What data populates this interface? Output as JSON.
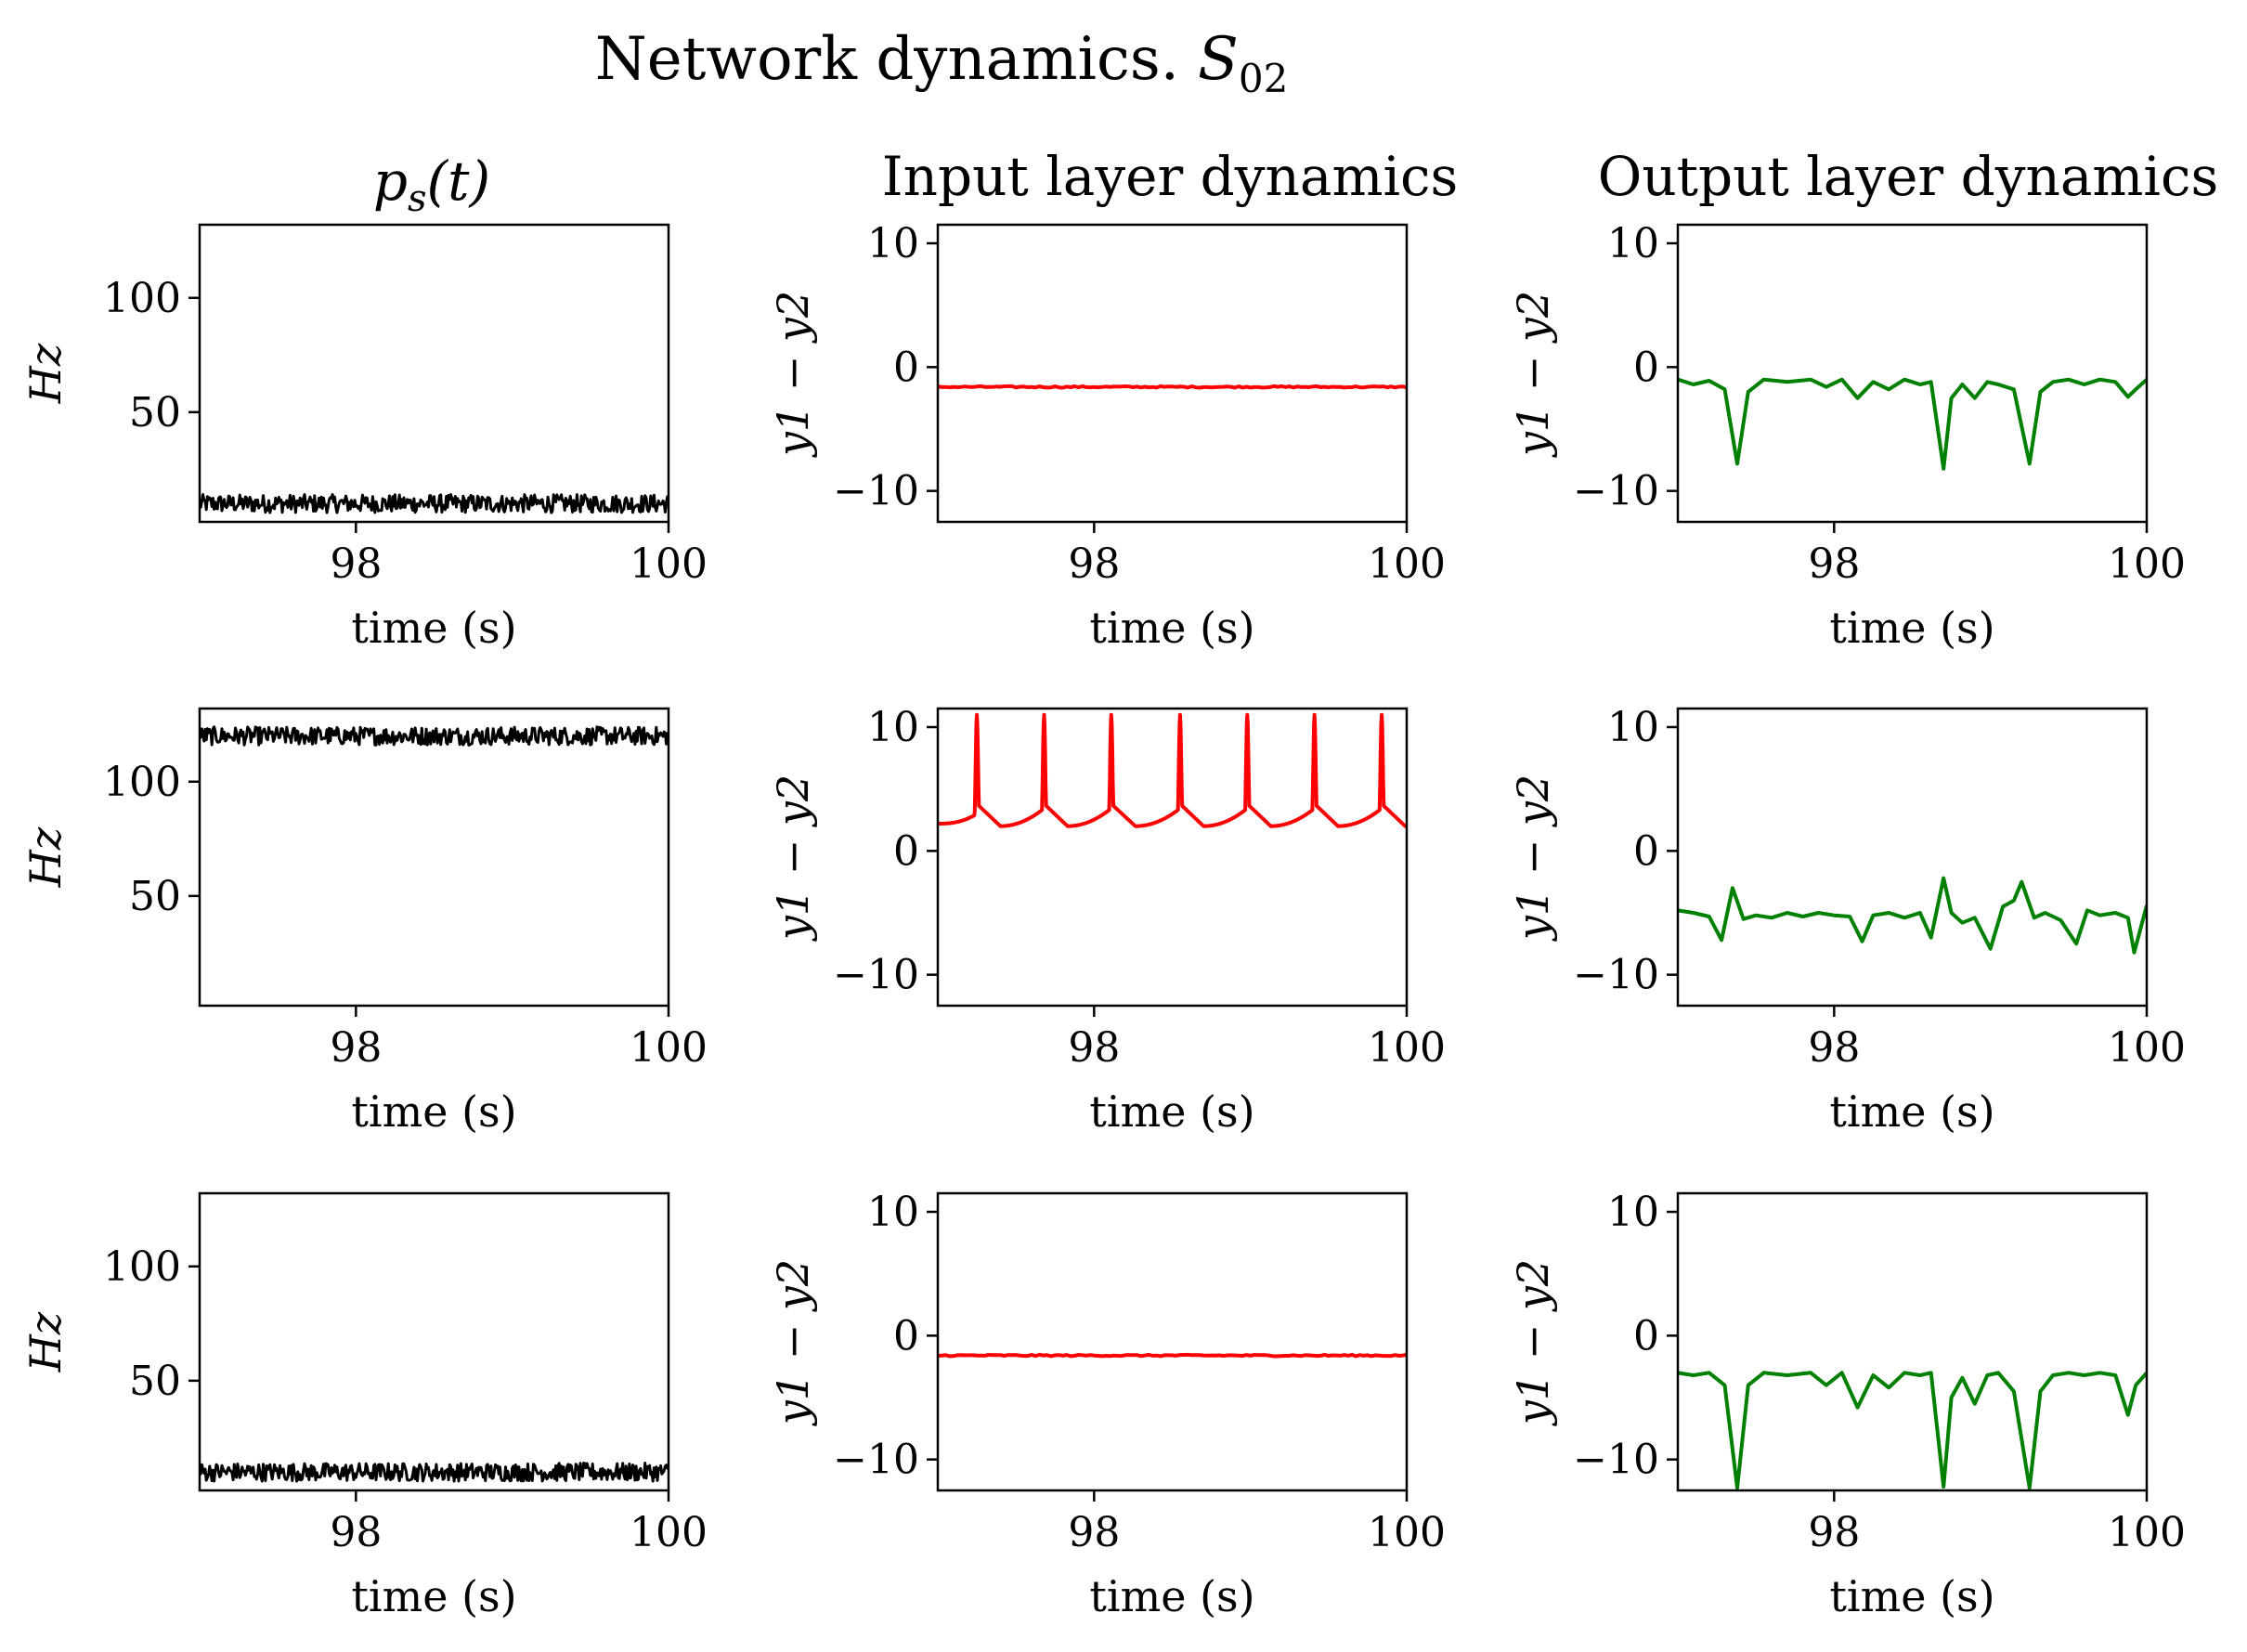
{
  "figure": {
    "suptitle": "Network dynamics.",
    "suptitle_math": {
      "base": "S",
      "sub": "02"
    },
    "column_titles": [
      {
        "base": "p",
        "sub": "s",
        "tail": "(t)"
      },
      {
        "text": "Input layer dynamics"
      },
      {
        "text": "Output layer dynamics"
      }
    ]
  },
  "chart_data": [
    {
      "type": "line",
      "row": 1,
      "col": 1,
      "xlabel": "time (s)",
      "ylabel": "Hz",
      "xlim": [
        97,
        100
      ],
      "ylim": [
        2,
        132
      ],
      "xticks": [
        98,
        100
      ],
      "yticks": [
        50,
        100
      ],
      "grid": false,
      "series": [
        {
          "color": "#000000",
          "kind": "noise",
          "mean": 10,
          "amplitude": 4,
          "t_start": 97,
          "t_end": 100
        }
      ]
    },
    {
      "type": "line",
      "row": 1,
      "col": 2,
      "xlabel": "time (s)",
      "ylabel": "y1 − y2",
      "xlim": [
        97,
        100
      ],
      "ylim": [
        -12.5,
        11.5
      ],
      "xticks": [
        98,
        100
      ],
      "yticks": [
        -10,
        0,
        10
      ],
      "grid": false,
      "series": [
        {
          "color": "#ff0000",
          "kind": "constant",
          "value": -1.6,
          "t_start": 97,
          "t_end": 100
        }
      ]
    },
    {
      "type": "line",
      "row": 1,
      "col": 3,
      "xlabel": "time (s)",
      "ylabel": "y1 − y2",
      "xlim": [
        97,
        100
      ],
      "ylim": [
        -12.5,
        11.5
      ],
      "xticks": [
        98,
        100
      ],
      "yticks": [
        -10,
        0,
        10
      ],
      "grid": false,
      "series": [
        {
          "color": "#008000",
          "kind": "points",
          "x": [
            97.0,
            97.1,
            97.2,
            97.3,
            97.38,
            97.45,
            97.55,
            97.7,
            97.85,
            97.95,
            98.05,
            98.15,
            98.25,
            98.35,
            98.45,
            98.55,
            98.62,
            98.7,
            98.75,
            98.82,
            98.9,
            98.98,
            99.05,
            99.15,
            99.25,
            99.32,
            99.4,
            99.5,
            99.6,
            99.7,
            99.8,
            99.88,
            99.93,
            100.0
          ],
          "y": [
            -1.0,
            -1.4,
            -1.1,
            -1.8,
            -7.8,
            -2.0,
            -1.0,
            -1.2,
            -1.0,
            -1.6,
            -1.0,
            -2.5,
            -1.2,
            -1.8,
            -1.0,
            -1.4,
            -1.2,
            -8.2,
            -2.5,
            -1.4,
            -2.5,
            -1.2,
            -1.4,
            -1.8,
            -7.8,
            -2.0,
            -1.2,
            -1.0,
            -1.4,
            -1.0,
            -1.2,
            -2.4,
            -1.8,
            -1.0
          ]
        }
      ]
    },
    {
      "type": "line",
      "row": 2,
      "col": 1,
      "xlabel": "time (s)",
      "ylabel": "Hz",
      "xlim": [
        97,
        100
      ],
      "ylim": [
        2,
        132
      ],
      "xticks": [
        98,
        100
      ],
      "yticks": [
        50,
        100
      ],
      "grid": false,
      "series": [
        {
          "color": "#000000",
          "kind": "noise",
          "mean": 120,
          "amplitude": 4,
          "t_start": 97,
          "t_end": 100
        }
      ]
    },
    {
      "type": "line",
      "row": 2,
      "col": 2,
      "xlabel": "time (s)",
      "ylabel": "y1 − y2",
      "xlim": [
        97,
        100
      ],
      "ylim": [
        -12.5,
        11.5
      ],
      "xticks": [
        98,
        100
      ],
      "yticks": [
        -10,
        0,
        10
      ],
      "grid": false,
      "series": [
        {
          "color": "#ff0000",
          "kind": "spikes",
          "base_start": 2.2,
          "base_trough": 2.0,
          "spike_peak": 11.0,
          "post_spike": 3.8,
          "spike_times": [
            97.25,
            97.68,
            98.11,
            98.55,
            98.98,
            99.41,
            99.84
          ],
          "t_start": 97,
          "t_end": 100
        }
      ]
    },
    {
      "type": "line",
      "row": 2,
      "col": 3,
      "xlabel": "time (s)",
      "ylabel": "y1 − y2",
      "xlim": [
        97,
        100
      ],
      "ylim": [
        -12.5,
        11.5
      ],
      "xticks": [
        98,
        100
      ],
      "yticks": [
        -10,
        0,
        10
      ],
      "grid": false,
      "series": [
        {
          "color": "#008000",
          "kind": "points",
          "x": [
            97.0,
            97.1,
            97.2,
            97.28,
            97.35,
            97.42,
            97.5,
            97.6,
            97.7,
            97.8,
            97.9,
            98.0,
            98.1,
            98.18,
            98.25,
            98.35,
            98.45,
            98.55,
            98.62,
            98.7,
            98.75,
            98.82,
            98.9,
            99.0,
            99.08,
            99.15,
            99.2,
            99.28,
            99.35,
            99.45,
            99.55,
            99.62,
            99.7,
            99.8,
            99.88,
            99.92,
            100.0
          ],
          "y": [
            -4.8,
            -5.0,
            -5.3,
            -7.2,
            -3.0,
            -5.5,
            -5.2,
            -5.4,
            -5.0,
            -5.3,
            -5.0,
            -5.2,
            -5.3,
            -7.3,
            -5.2,
            -5.0,
            -5.4,
            -5.0,
            -7.0,
            -2.2,
            -5.0,
            -5.8,
            -5.4,
            -7.9,
            -4.5,
            -4.0,
            -2.5,
            -5.4,
            -5.0,
            -5.6,
            -7.5,
            -4.8,
            -5.2,
            -5.0,
            -5.4,
            -8.2,
            -4.4
          ]
        }
      ]
    },
    {
      "type": "line",
      "row": 3,
      "col": 1,
      "xlabel": "time (s)",
      "ylabel": "Hz",
      "xlim": [
        97,
        100
      ],
      "ylim": [
        2,
        132
      ],
      "xticks": [
        98,
        100
      ],
      "yticks": [
        50,
        100
      ],
      "grid": false,
      "series": [
        {
          "color": "#000000",
          "kind": "noise",
          "mean": 10,
          "amplitude": 4,
          "t_start": 97,
          "t_end": 100
        }
      ]
    },
    {
      "type": "line",
      "row": 3,
      "col": 2,
      "xlabel": "time (s)",
      "ylabel": "y1 − y2",
      "xlim": [
        97,
        100
      ],
      "ylim": [
        -12.5,
        11.5
      ],
      "xticks": [
        98,
        100
      ],
      "yticks": [
        -10,
        0,
        10
      ],
      "grid": false,
      "series": [
        {
          "color": "#ff0000",
          "kind": "constant",
          "value": -1.6,
          "t_start": 97,
          "t_end": 100
        }
      ]
    },
    {
      "type": "line",
      "row": 3,
      "col": 3,
      "xlabel": "time (s)",
      "ylabel": "y1 − y2",
      "xlim": [
        97,
        100
      ],
      "ylim": [
        -12.5,
        11.5
      ],
      "xticks": [
        98,
        100
      ],
      "yticks": [
        -10,
        0,
        10
      ],
      "grid": false,
      "series": [
        {
          "color": "#008000",
          "kind": "points",
          "x": [
            97.0,
            97.1,
            97.2,
            97.3,
            97.38,
            97.45,
            97.55,
            97.7,
            97.85,
            97.95,
            98.05,
            98.15,
            98.25,
            98.35,
            98.45,
            98.55,
            98.62,
            98.7,
            98.75,
            98.82,
            98.9,
            98.98,
            99.05,
            99.15,
            99.25,
            99.32,
            99.4,
            99.5,
            99.6,
            99.7,
            99.8,
            99.88,
            99.93,
            100.0
          ],
          "y": [
            -3.0,
            -3.2,
            -3.0,
            -4.0,
            -12.3,
            -4.0,
            -3.0,
            -3.2,
            -3.0,
            -4.0,
            -3.0,
            -5.8,
            -3.2,
            -4.2,
            -3.0,
            -3.2,
            -3.0,
            -12.2,
            -5.0,
            -3.4,
            -5.5,
            -3.2,
            -3.0,
            -4.5,
            -12.3,
            -4.5,
            -3.2,
            -3.0,
            -3.2,
            -3.0,
            -3.2,
            -6.4,
            -4.0,
            -3.0
          ]
        }
      ]
    }
  ]
}
